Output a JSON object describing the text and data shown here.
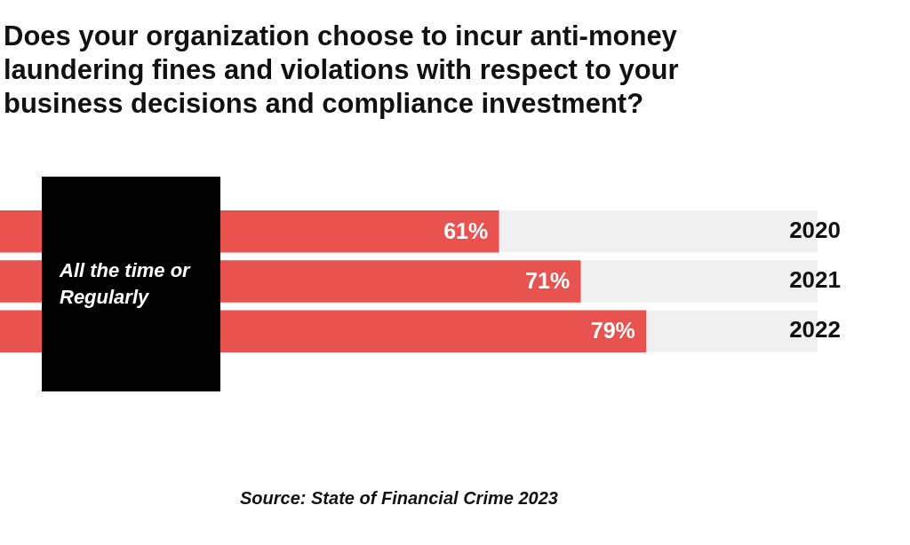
{
  "chart_data": {
    "type": "bar",
    "orientation": "horizontal",
    "title": "Does your organization choose to incur anti-money laundering fines and violations with respect to your business decisions and compliance investment?",
    "categories": [
      "2020",
      "2021",
      "2022"
    ],
    "values": [
      61,
      71,
      79
    ],
    "color": "#e8524f",
    "data_labels": true,
    "value_labels": [
      "61%",
      "71%",
      "79%"
    ],
    "xlim": [
      0,
      100
    ],
    "tick_labels": "y",
    "grid": false,
    "legend": false,
    "annotations": [
      "All the time or Regularly",
      "Source: State of Financial Crime 2023"
    ]
  }
}
